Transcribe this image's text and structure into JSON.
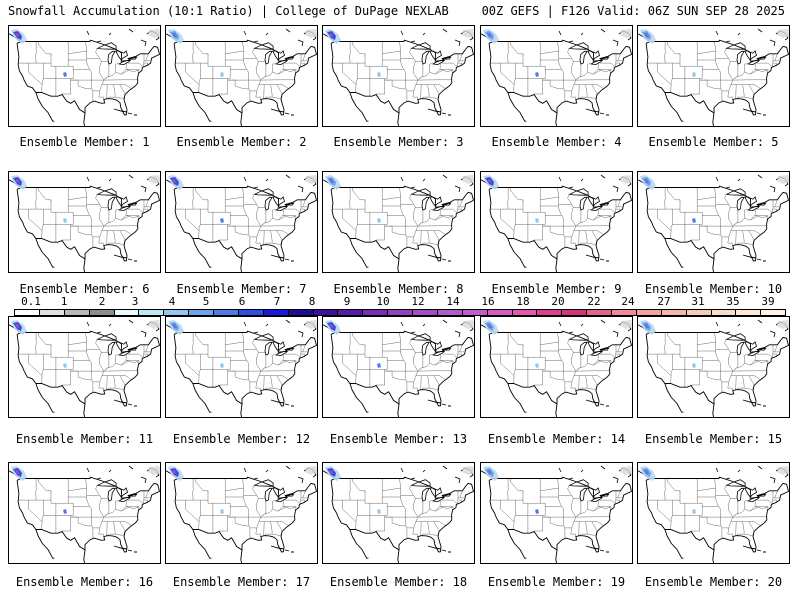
{
  "header": {
    "left_title": "Snowfall Accumulation (10:1 Ratio) | College of DuPage NEXLAB",
    "right_title": "00Z GEFS | F126 Valid: 06Z SUN SEP 28 2025"
  },
  "members": [
    {
      "label": "Ensemble Member: 1"
    },
    {
      "label": "Ensemble Member: 2"
    },
    {
      "label": "Ensemble Member: 3"
    },
    {
      "label": "Ensemble Member: 4"
    },
    {
      "label": "Ensemble Member: 5"
    },
    {
      "label": "Ensemble Member: 6"
    },
    {
      "label": "Ensemble Member: 7"
    },
    {
      "label": "Ensemble Member: 8"
    },
    {
      "label": "Ensemble Member: 9"
    },
    {
      "label": "Ensemble Member: 10"
    },
    {
      "label": "Ensemble Member: 11"
    },
    {
      "label": "Ensemble Member: 12"
    },
    {
      "label": "Ensemble Member: 13"
    },
    {
      "label": "Ensemble Member: 14"
    },
    {
      "label": "Ensemble Member: 15"
    },
    {
      "label": "Ensemble Member: 16"
    },
    {
      "label": "Ensemble Member: 17"
    },
    {
      "label": "Ensemble Member: 18"
    },
    {
      "label": "Ensemble Member: 19"
    },
    {
      "label": "Ensemble Member: 20"
    }
  ],
  "colorbar": {
    "labels": [
      "0.1",
      "1",
      "2",
      "3",
      "4",
      "5",
      "6",
      "7",
      "8",
      "9",
      "10",
      "12",
      "14",
      "16",
      "18",
      "20",
      "22",
      "24",
      "27",
      "31",
      "35",
      "39"
    ],
    "colors": [
      "#ffffff",
      "#e0e0e0",
      "#b8b8b8",
      "#8c8c8c",
      "#e8fbfd",
      "#bce9f6",
      "#92c8ee",
      "#6ea2ea",
      "#4d7ae6",
      "#2f4fe4",
      "#1717e6",
      "#1e0b9a",
      "#3d0f9e",
      "#5a1aa8",
      "#7a2eb8",
      "#9441bf",
      "#a14fc6",
      "#b05cc8",
      "#c05ec8",
      "#d65ec0",
      "#e258b0",
      "#dd3f8e",
      "#d43478",
      "#e36489",
      "#ee8b96",
      "#f2a39e",
      "#f5b8a6",
      "#f8cbb4",
      "#fbdcc4",
      "#fde9d6",
      "#fff2e6"
    ]
  }
}
